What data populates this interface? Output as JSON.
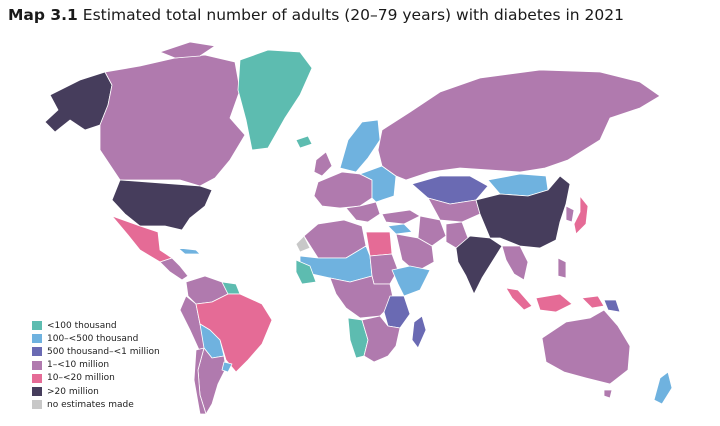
{
  "title": {
    "label": "Map 3.1",
    "text": "Estimated total number of adults (20–79 years) with diabetes in 2021"
  },
  "colors": {
    "lt100k": "#5dbcb0",
    "c100to500k": "#6fb2df",
    "c500kto1m": "#6a6ab3",
    "c1to10m": "#b07aae",
    "c10to20m": "#e56b96",
    "gt20m": "#463d5c",
    "none": "#c8c8c8"
  },
  "legend": [
    {
      "label": "<100 thousand",
      "color_key": "lt100k"
    },
    {
      "label": "100–<500 thousand",
      "color_key": "c100to500k"
    },
    {
      "label": "500 thousand–<1 million",
      "color_key": "c500kto1m"
    },
    {
      "label": "1–<10 million",
      "color_key": "c1to10m"
    },
    {
      "label": "10–<20 million",
      "color_key": "c10to20m"
    },
    {
      "label": ">20 million",
      "color_key": "gt20m"
    },
    {
      "label": "no estimates made",
      "color_key": "none"
    }
  ]
}
